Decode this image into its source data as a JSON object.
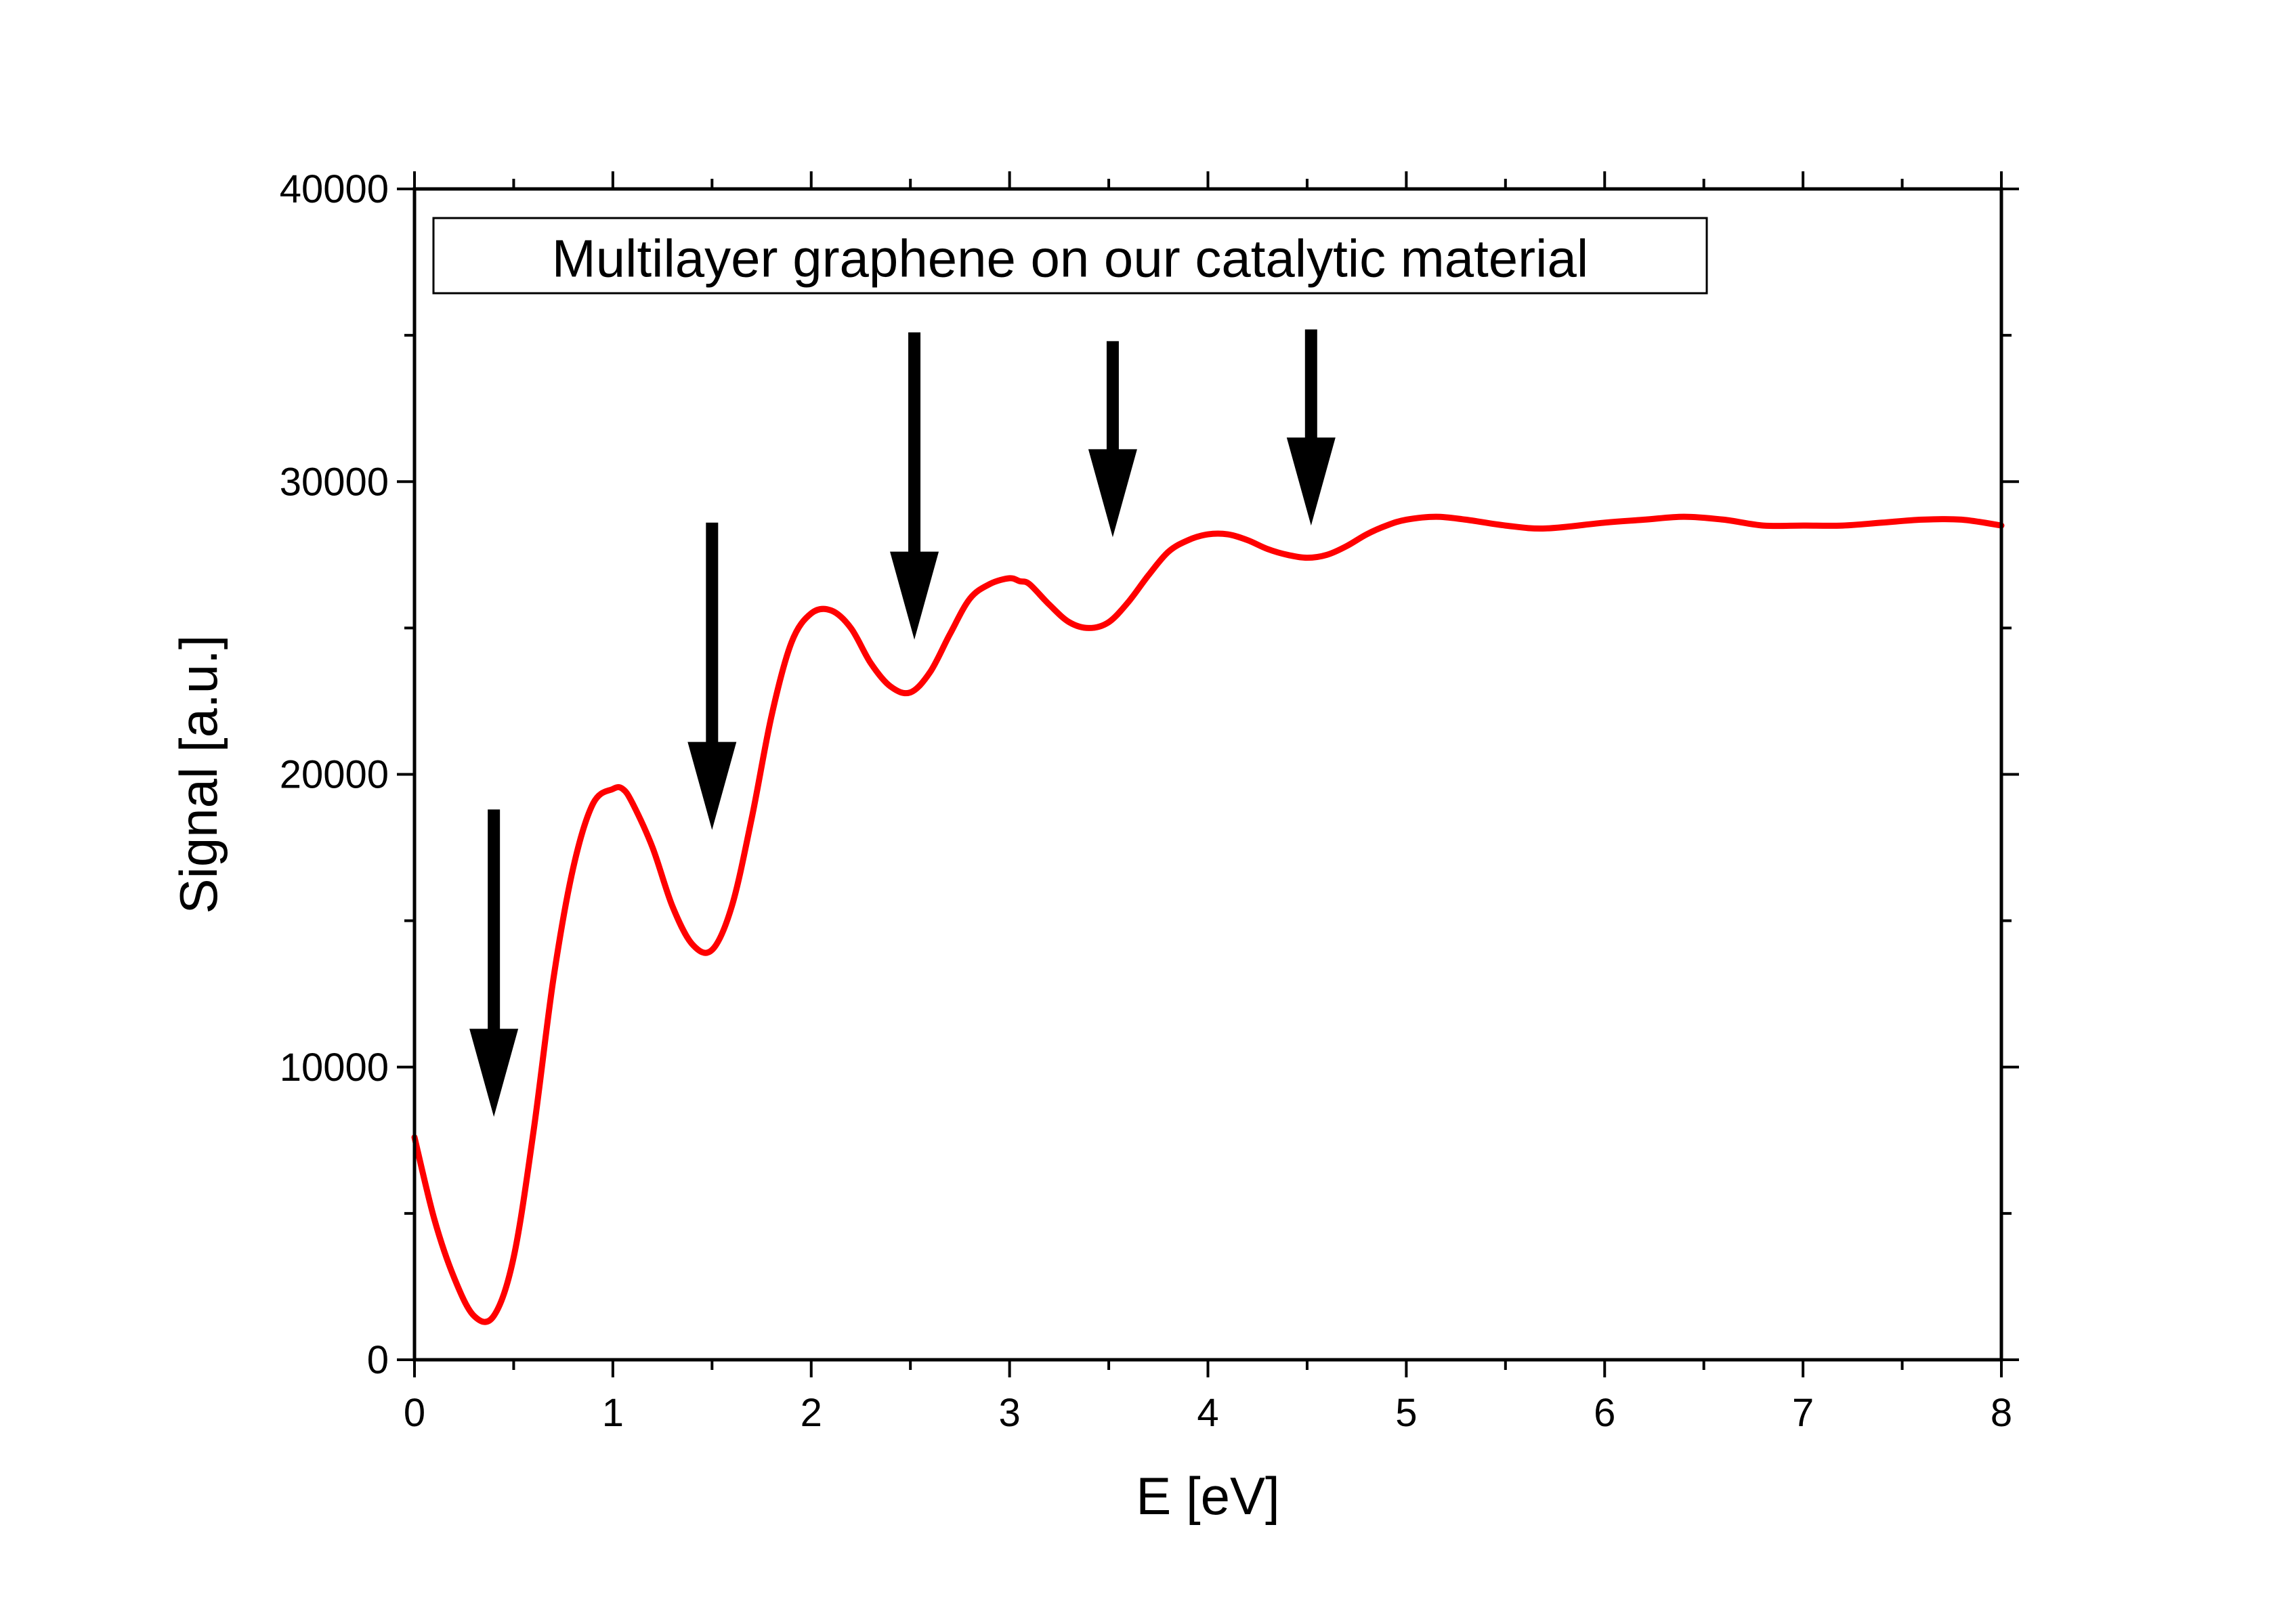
{
  "chart_data": {
    "type": "line",
    "title": "",
    "xlabel": "E [eV]",
    "ylabel": "Signal [a.u.]",
    "xlim": [
      0,
      8
    ],
    "ylim": [
      0,
      40000
    ],
    "x_ticks": [
      0,
      1,
      2,
      3,
      4,
      5,
      6,
      7,
      8
    ],
    "x_tick_labels": [
      "0",
      "1",
      "2",
      "3",
      "4",
      "5",
      "6",
      "7",
      "8"
    ],
    "y_ticks": [
      0,
      10000,
      20000,
      30000,
      40000
    ],
    "y_tick_labels": [
      "0",
      "10000",
      "20000",
      "30000",
      "40000"
    ],
    "grid": false,
    "legend": {
      "text": "Multilayer graphene on our catalytic material",
      "placement": "top-left"
    },
    "series": [
      {
        "color": "#ff0000",
        "x": [
          0,
          0.1,
          0.2,
          0.3,
          0.4,
          0.5,
          0.6,
          0.7,
          0.8,
          0.9,
          1.0,
          1.05,
          1.1,
          1.2,
          1.3,
          1.4,
          1.5,
          1.6,
          1.7,
          1.8,
          1.9,
          2.0,
          2.1,
          2.2,
          2.3,
          2.4,
          2.5,
          2.6,
          2.7,
          2.8,
          2.9,
          3.0,
          3.05,
          3.1,
          3.2,
          3.3,
          3.4,
          3.5,
          3.6,
          3.7,
          3.8,
          3.9,
          4.0,
          4.1,
          4.2,
          4.3,
          4.4,
          4.5,
          4.6,
          4.7,
          4.8,
          4.9,
          5.0,
          5.15,
          5.3,
          5.5,
          5.7,
          6.0,
          6.2,
          6.4,
          6.6,
          6.8,
          7.0,
          7.2,
          7.4,
          7.6,
          7.8,
          8.0
        ],
        "y": [
          7600,
          4800,
          2800,
          1500,
          1500,
          3500,
          7800,
          13000,
          16800,
          19000,
          19500,
          19500,
          19000,
          17500,
          15500,
          14200,
          14000,
          15500,
          18500,
          22000,
          24500,
          25500,
          25600,
          25000,
          23800,
          23000,
          22800,
          23500,
          24800,
          26000,
          26500,
          26700,
          26600,
          26500,
          25800,
          25200,
          25000,
          25200,
          25900,
          26800,
          27600,
          28000,
          28200,
          28200,
          28000,
          27700,
          27500,
          27400,
          27500,
          27800,
          28200,
          28500,
          28700,
          28800,
          28700,
          28500,
          28400,
          28600,
          28700,
          28800,
          28700,
          28500,
          28500,
          28500,
          28600,
          28700,
          28700,
          28500
        ]
      }
    ],
    "annotations": [
      {
        "type": "arrow",
        "x": 0.4,
        "y_tail": 18800,
        "y_tip": 8300
      },
      {
        "type": "arrow",
        "x": 1.5,
        "y_tail": 28600,
        "y_tip": 18100
      },
      {
        "type": "arrow",
        "x": 2.52,
        "y_tail": 35100,
        "y_tip": 24600
      },
      {
        "type": "arrow",
        "x": 3.52,
        "y_tail": 34800,
        "y_tip": 28100
      },
      {
        "type": "arrow",
        "x": 4.52,
        "y_tail": 35200,
        "y_tip": 28500
      }
    ]
  }
}
